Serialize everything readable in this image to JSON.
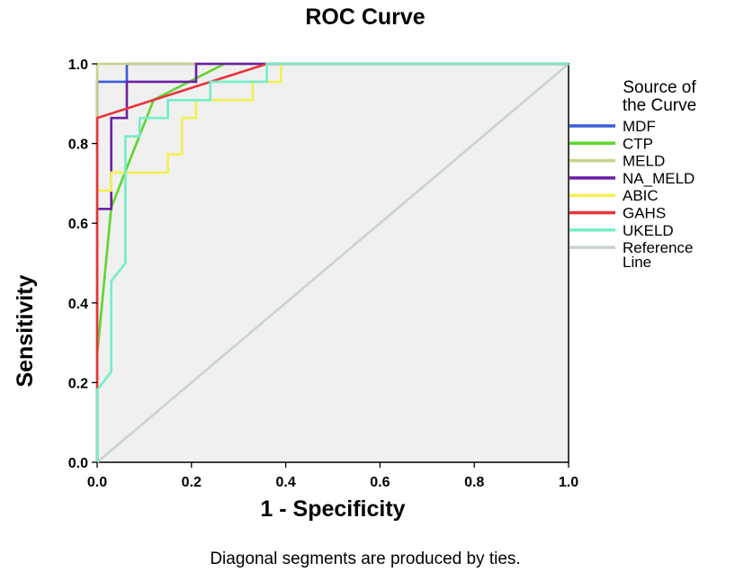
{
  "chart_data": {
    "type": "line",
    "title": "ROC Curve",
    "xlabel": "1 - Specificity",
    "ylabel": "Sensitivity",
    "xlim": [
      0,
      1
    ],
    "ylim": [
      0,
      1
    ],
    "xticks": [
      "0.0",
      "0.2",
      "0.4",
      "0.6",
      "0.8",
      "1.0"
    ],
    "yticks": [
      "0.0",
      "0.2",
      "0.4",
      "0.6",
      "0.8",
      "1.0"
    ],
    "legend_title": [
      "Source of",
      "the Curve"
    ],
    "footnote": "Diagonal segments are produced by ties.",
    "series": [
      {
        "name": "MDF",
        "color": "#3a5bd9",
        "x": [
          0,
          0,
          0.063,
          0.063,
          1
        ],
        "y": [
          0,
          0.955,
          0.955,
          1,
          1
        ]
      },
      {
        "name": "CTP",
        "color": "#5dd62c",
        "x": [
          0,
          0.03,
          0.12,
          0.27,
          1
        ],
        "y": [
          0.27,
          0.64,
          0.91,
          1,
          1
        ]
      },
      {
        "name": "MELD",
        "color": "#c9cf8a",
        "x": [
          0,
          0,
          1
        ],
        "y": [
          0,
          1,
          1
        ]
      },
      {
        "name": "NA_MELD",
        "color": "#6a1fa5",
        "x": [
          0,
          0,
          0.03,
          0.03,
          0.063,
          0.063,
          0.21,
          0.21,
          1
        ],
        "y": [
          0,
          0.636,
          0.636,
          0.864,
          0.864,
          0.955,
          0.955,
          1,
          1
        ]
      },
      {
        "name": "ABIC",
        "color": "#f3f053",
        "x": [
          0,
          0,
          0.03,
          0.03,
          0.15,
          0.15,
          0.18,
          0.18,
          0.21,
          0.21,
          0.33,
          0.33,
          0.39,
          0.39,
          1
        ],
        "y": [
          0,
          0.682,
          0.682,
          0.727,
          0.727,
          0.773,
          0.773,
          0.864,
          0.864,
          0.909,
          0.909,
          0.955,
          0.955,
          1,
          1
        ]
      },
      {
        "name": "GAHS",
        "color": "#e8333b",
        "x": [
          0,
          0,
          0.36,
          1
        ],
        "y": [
          0,
          0.864,
          1,
          1
        ]
      },
      {
        "name": "UKELD",
        "color": "#73edc8",
        "x": [
          0,
          0,
          0.03,
          0.03,
          0.06,
          0.06,
          0.09,
          0.09,
          0.12,
          0.12,
          0.15,
          0.15,
          0.24,
          0.24,
          0.36,
          0.36,
          1
        ],
        "y": [
          0,
          0.182,
          0.227,
          0.455,
          0.5,
          0.818,
          0.818,
          0.864,
          0.864,
          0.864,
          0.864,
          0.909,
          0.909,
          0.955,
          0.955,
          1,
          1
        ]
      },
      {
        "name": "Reference Line",
        "legend_label": [
          "Reference",
          "Line"
        ],
        "color": "#c8d3d0",
        "x": [
          0,
          1
        ],
        "y": [
          0,
          1
        ]
      }
    ]
  }
}
